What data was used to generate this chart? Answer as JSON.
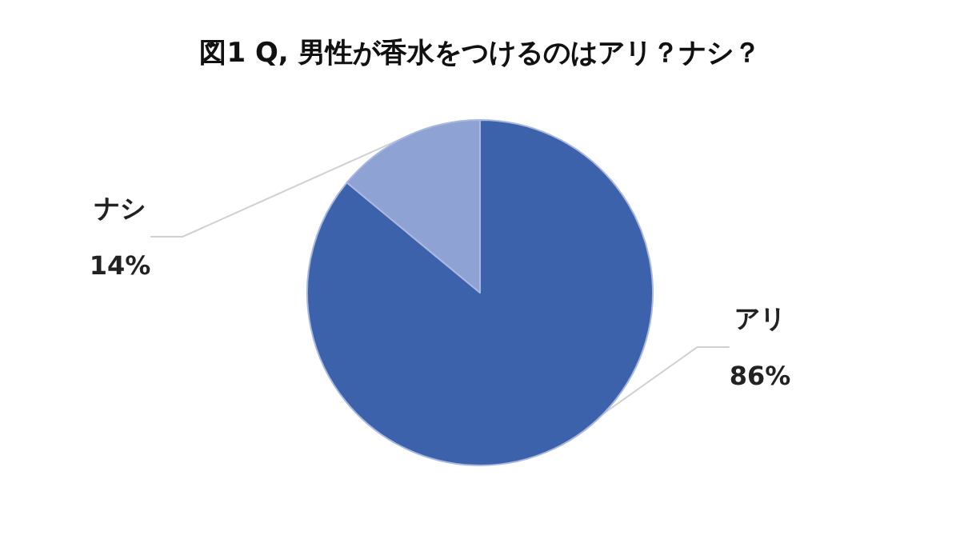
{
  "chart_data": {
    "type": "pie",
    "title": "図1 Q, 男性が香水をつけるのはアリ？ナシ？",
    "categories": [
      "アリ",
      "ナシ"
    ],
    "values": [
      86,
      14
    ],
    "value_labels": [
      "86%",
      "14%"
    ],
    "colors": [
      "#3b62ab",
      "#8fa2d4"
    ],
    "legend": false
  }
}
